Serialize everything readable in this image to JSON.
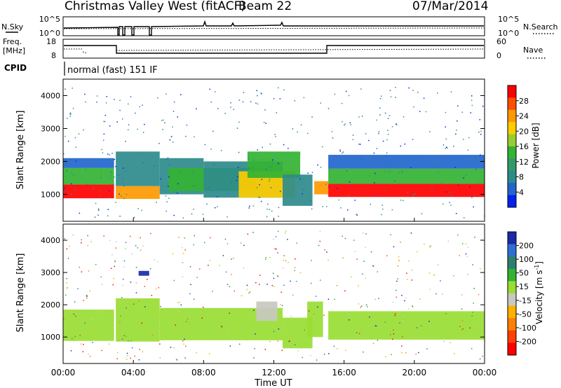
{
  "header": {
    "title": "Christmas Valley West (fitACF)",
    "beam": "Beam 22",
    "date": "07/Mar/2014"
  },
  "nsky_panel": {
    "left_label": "N.Sky",
    "right_label": "N.Search",
    "left_ticks": [
      "10^5",
      "10^0"
    ],
    "right_ticks": [
      "10^5",
      "10^0"
    ]
  },
  "freq_panel": {
    "left_label_line1": "Freq.",
    "left_label_line2": "[MHz]",
    "right_label": "Nave",
    "left_ticks": [
      "18",
      "8"
    ],
    "right_ticks": [
      "60",
      "0"
    ]
  },
  "cpid": {
    "label": "CPID",
    "mode": "normal (fast) 151 IF"
  },
  "power_panel": {
    "ylabel": "Slant Range [km]",
    "yticks": [
      "4000",
      "3000",
      "2000",
      "1000"
    ],
    "colorbar": {
      "label": "Power [dB]",
      "ticks": [
        "28",
        "24",
        "20",
        "16",
        "12",
        "8",
        "4"
      ],
      "colors": [
        "#ff0000",
        "#ff4d00",
        "#ff9900",
        "#ffcc00",
        "#99cc33",
        "#33b233",
        "#339966",
        "#2e8b8b",
        "#2266cc",
        "#0022ee"
      ]
    }
  },
  "velocity_panel": {
    "ylabel": "Slant Range [km]",
    "yticks": [
      "4000",
      "3000",
      "2000",
      "1000"
    ],
    "colorbar": {
      "label_main": "Velocity [m s",
      "label_sup": "-1",
      "label_end": "]",
      "ticks": [
        "200",
        "100",
        "50",
        "15",
        "-15",
        "-50",
        "-100",
        "-200"
      ],
      "colors": [
        "#1a2aa8",
        "#2e6fd0",
        "#2e7f6f",
        "#33b233",
        "#99dd33",
        "#c8c8c0",
        "#ffb000",
        "#ff7f00",
        "#ff4000",
        "#ff0000"
      ]
    }
  },
  "time_axis": {
    "xlabel": "Time UT",
    "ticks": [
      "00:00",
      "04:00",
      "08:00",
      "12:00",
      "16:00",
      "20:00",
      "00:00"
    ]
  },
  "chart_data": {
    "type": "heatmap",
    "title": "Christmas Valley West (fitACF)",
    "subtitle": "Beam 22",
    "date": "07/Mar/2014",
    "x_range_hours": [
      0,
      24
    ],
    "y_range_km": [
      180,
      4500
    ],
    "power": {
      "label": "Power [dB]",
      "range": [
        0,
        30
      ],
      "regions": [
        {
          "t0": 0.0,
          "t1": 2.9,
          "r0": 880,
          "r1": 1300,
          "value": 28
        },
        {
          "t0": 0.0,
          "t1": 2.9,
          "r0": 1300,
          "r1": 1800,
          "value": 12
        },
        {
          "t0": 0.0,
          "t1": 2.9,
          "r0": 1800,
          "r1": 2100,
          "value": 5
        },
        {
          "t0": 3.0,
          "t1": 5.5,
          "r0": 860,
          "r1": 1250,
          "value": 22
        },
        {
          "t0": 3.0,
          "t1": 5.5,
          "r0": 1250,
          "r1": 2300,
          "value": 8
        },
        {
          "t0": 5.5,
          "t1": 8.0,
          "r0": 1000,
          "r1": 2100,
          "value": 6
        },
        {
          "t0": 6.0,
          "t1": 11.0,
          "r0": 1100,
          "r1": 1800,
          "value": 13
        },
        {
          "t0": 8.0,
          "t1": 12.5,
          "r0": 900,
          "r1": 2000,
          "value": 7
        },
        {
          "t0": 10.0,
          "t1": 13.2,
          "r0": 900,
          "r1": 1700,
          "value": 18
        },
        {
          "t0": 10.5,
          "t1": 13.5,
          "r0": 1500,
          "r1": 2300,
          "value": 12
        },
        {
          "t0": 12.5,
          "t1": 14.2,
          "r0": 650,
          "r1": 1600,
          "value": 6
        },
        {
          "t0": 14.3,
          "t1": 15.1,
          "r0": 1000,
          "r1": 1400,
          "value": 22
        },
        {
          "t0": 15.1,
          "t1": 24.0,
          "r0": 920,
          "r1": 1320,
          "value": 28
        },
        {
          "t0": 15.1,
          "t1": 24.0,
          "r0": 1320,
          "r1": 1780,
          "value": 14
        },
        {
          "t0": 15.1,
          "t1": 24.0,
          "r0": 1780,
          "r1": 2200,
          "value": 5
        }
      ]
    },
    "velocity": {
      "label": "Velocity [m s-1]",
      "range": [
        -200,
        200
      ],
      "regions": [
        {
          "t0": 0.0,
          "t1": 2.9,
          "r0": 880,
          "r1": 1850,
          "value": 0
        },
        {
          "t0": 3.0,
          "t1": 5.5,
          "r0": 860,
          "r1": 2200,
          "value": 0
        },
        {
          "t0": 4.3,
          "t1": 4.9,
          "r0": 2900,
          "r1": 3050,
          "value": 200
        },
        {
          "t0": 5.5,
          "t1": 12.5,
          "r0": 900,
          "r1": 1900,
          "value": 0
        },
        {
          "t0": 11.0,
          "t1": 12.2,
          "r0": 1500,
          "r1": 2100,
          "value": -40
        },
        {
          "t0": 12.5,
          "t1": 14.2,
          "r0": 650,
          "r1": 1600,
          "value": 0
        },
        {
          "t0": 13.9,
          "t1": 14.8,
          "r0": 1000,
          "r1": 2100,
          "value": 30
        },
        {
          "t0": 15.1,
          "t1": 24.0,
          "r0": 920,
          "r1": 1800,
          "value": 0
        }
      ]
    },
    "frequency_mhz": [
      {
        "t0": 0.0,
        "t1": 3.0,
        "value": 14.5
      },
      {
        "t0": 3.0,
        "t1": 15.1,
        "value": 10.5
      },
      {
        "t0": 15.1,
        "t1": 24.0,
        "value": 14.5
      }
    ],
    "nave": 15
  }
}
